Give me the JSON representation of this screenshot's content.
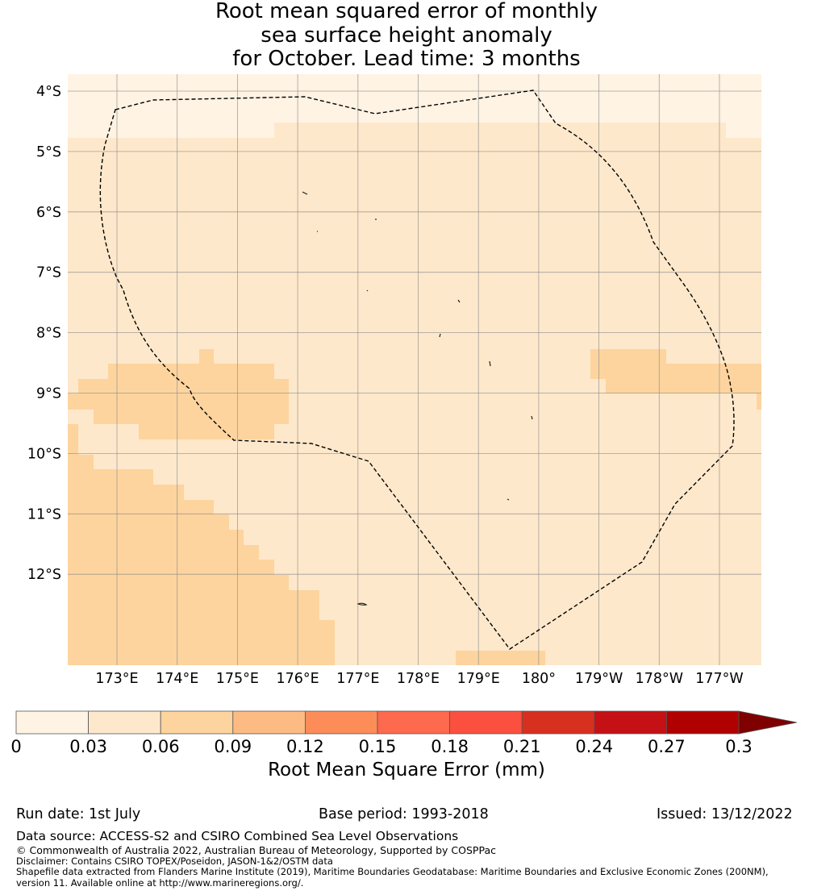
{
  "title": {
    "line1": "Root mean squared error of monthly",
    "line2": "sea surface height anomaly",
    "line3": "for October. Lead time: 3 months"
  },
  "map": {
    "lat_labels": [
      "4°S",
      "5°S",
      "6°S",
      "7°S",
      "8°S",
      "9°S",
      "10°S",
      "11°S",
      "12°S"
    ],
    "lon_labels": [
      "173°E",
      "174°E",
      "175°E",
      "176°E",
      "177°E",
      "178°E",
      "179°E",
      "180°",
      "179°W",
      "178°W",
      "177°W"
    ],
    "lat_values": [
      -4,
      -5,
      -6,
      -7,
      -8,
      -9,
      -10,
      -11,
      -12
    ],
    "lon_values": [
      173,
      174,
      175,
      176,
      177,
      178,
      179,
      180,
      181,
      182,
      183
    ],
    "boundary": "dashed EEZ outline",
    "colors": {
      "lowest": "#fff3e3",
      "low": "#fee8cb",
      "mid": "#fdd49e",
      "gridline": "#8c8c8c"
    }
  },
  "colorbar": {
    "tick_labels": [
      "0",
      "0.03",
      "0.06",
      "0.09",
      "0.12",
      "0.15",
      "0.18",
      "0.21",
      "0.24",
      "0.27",
      "0.3"
    ],
    "colors": [
      "#fff3e3",
      "#fee8cb",
      "#fdd49e",
      "#fdbb84",
      "#fc8d59",
      "#fe6a4d",
      "#fb5040",
      "#d7301f",
      "#c51015",
      "#b00000",
      "#7f0000"
    ],
    "extend": "max",
    "label": "Root Mean Square Error (mm)"
  },
  "footer": {
    "run_date": "Run date: 1st July",
    "base_period": "Base period: 1993-2018",
    "issued": "Issued: 13/12/2022",
    "data_source": "Data source: ACCESS-S2 and CSIRO Combined Sea Level Observations",
    "copyright": "© Commonwealth of Australia 2022, Australian Bureau of Meteorology, Supported by COSPPac",
    "disclaimer": "Disclaimer: Contains CSIRO TOPEX/Poseidon, JASON-1&2/OSTM data",
    "shapefile_line1": "Shapefile data extracted from Flanders Marine Institute (2019), Maritime Boundaries Geodatabase: Maritime Boundaries and Exclusive Economic Zones (200NM),",
    "shapefile_line2": "version 11. Available online at http://www.marineregions.org/."
  }
}
